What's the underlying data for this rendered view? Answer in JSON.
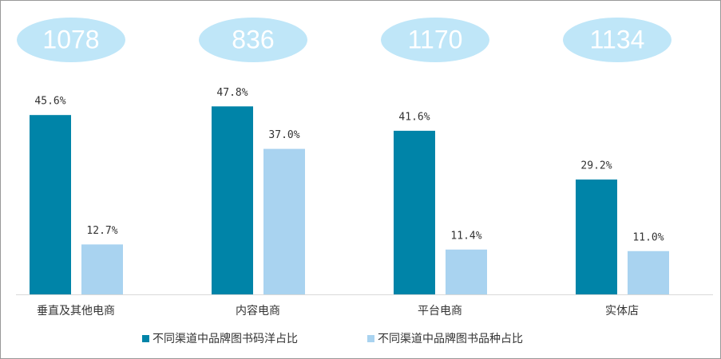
{
  "chart_data": {
    "type": "bar",
    "categories": [
      "垂直及其他电商",
      "内容电商",
      "平台电商",
      "实体店"
    ],
    "category_totals": [
      1078,
      836,
      1170,
      1134
    ],
    "series": [
      {
        "name": "不同渠道中品牌图书码洋占比",
        "color": "#0084A8",
        "values": [
          45.6,
          47.8,
          41.6,
          29.2
        ],
        "value_labels": [
          "45.6%",
          "47.8%",
          "41.6%",
          "29.2%"
        ]
      },
      {
        "name": "不同渠道中品牌图书品种占比",
        "color": "#A9D3F0",
        "values": [
          12.7,
          37.0,
          11.4,
          11.0
        ],
        "value_labels": [
          "12.7%",
          "37.0%",
          "11.4%",
          "11.0%"
        ]
      }
    ],
    "ylim": [
      0,
      50
    ],
    "grid": false,
    "legend": "bottom"
  }
}
